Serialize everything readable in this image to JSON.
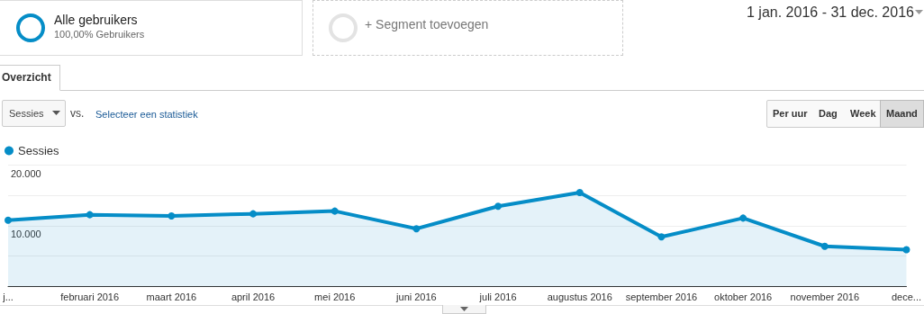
{
  "chart_data": {
    "type": "area",
    "categories": [
      "j...",
      "februari 2016",
      "maart 2016",
      "april 2016",
      "mei 2016",
      "juni 2016",
      "juli 2016",
      "augustus 2016",
      "september 2016",
      "oktober 2016",
      "november 2016",
      "dece..."
    ],
    "series": [
      {
        "name": "Sessies",
        "color": "#058dc7",
        "values": [
          10900,
          11800,
          11600,
          11950,
          12400,
          9500,
          13200,
          15450,
          8150,
          11250,
          6600,
          6050
        ]
      }
    ],
    "ylim": [
      0,
      20000
    ],
    "yticks": [
      {
        "value": 0,
        "label": null
      },
      {
        "value": 5000,
        "label": null
      },
      {
        "value": 10000,
        "label": "10.000"
      },
      {
        "value": 15000,
        "label": null
      },
      {
        "value": 20000,
        "label": "20.000"
      }
    ],
    "grid": "y",
    "legend": "top left",
    "marker": "circle",
    "line_style": "solid",
    "annotations": [
      "Alle gebruikers",
      "100,00% Gebruikers",
      "+ Segment toevoegen",
      "1 jan. 2016 - 31 dec. 2016",
      "Overzicht",
      "Sessies",
      "vs.",
      "Selecteer een statistiek",
      "Per uur",
      "Dag",
      "Week",
      "Maand"
    ]
  }
}
